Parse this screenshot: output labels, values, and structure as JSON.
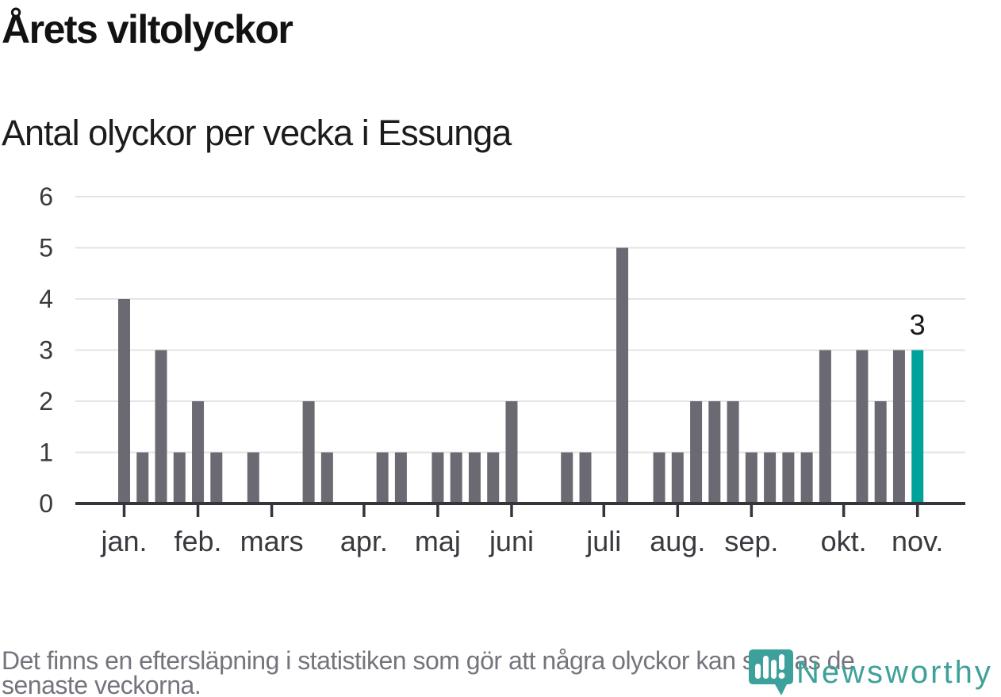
{
  "title": "Årets viltolyckor",
  "subtitle": "Antal olyckor per vecka i Essunga",
  "footnote": {
    "line1": "Det finns en eftersläpning i statistiken som gör att några olyckor kan saknas de",
    "line2": "senaste veckorna."
  },
  "logo": {
    "wordmark": "Newsworthy",
    "icon": "newsworthy-pin-barchart-icon",
    "color": "#3FA19B"
  },
  "colors": {
    "bar": "#6B6A72",
    "highlight": "#00A39B",
    "gridline": "#E4E4E6",
    "axis": "#36353B",
    "axis_label": "#3A393F",
    "value_label": "#1A1A1A",
    "footnote_text": "#75747D"
  },
  "chart_data": {
    "type": "bar",
    "title": "Årets viltolyckor",
    "subtitle": "Antal olyckor per vecka i Essunga",
    "x_unit": "vecka",
    "ylim": [
      0,
      6
    ],
    "y_ticks": [
      0,
      1,
      2,
      3,
      4,
      5,
      6
    ],
    "grid": true,
    "values": [
      4,
      1,
      3,
      1,
      2,
      1,
      0,
      1,
      0,
      0,
      2,
      1,
      0,
      0,
      1,
      1,
      0,
      1,
      1,
      1,
      1,
      2,
      0,
      0,
      1,
      1,
      0,
      5,
      0,
      1,
      1,
      2,
      2,
      2,
      1,
      1,
      1,
      1,
      3,
      0,
      3,
      2,
      3,
      3
    ],
    "months": [
      {
        "label": "jan.",
        "week": 0
      },
      {
        "label": "feb.",
        "week": 4
      },
      {
        "label": "mars",
        "week": 8
      },
      {
        "label": "apr.",
        "week": 13
      },
      {
        "label": "maj",
        "week": 17
      },
      {
        "label": "juni",
        "week": 21
      },
      {
        "label": "juli",
        "week": 26
      },
      {
        "label": "aug.",
        "week": 30
      },
      {
        "label": "sep.",
        "week": 34
      },
      {
        "label": "okt.",
        "week": 39
      },
      {
        "label": "nov.",
        "week": 43
      }
    ],
    "highlight": {
      "index": 43,
      "value": 3,
      "label": "3"
    }
  }
}
